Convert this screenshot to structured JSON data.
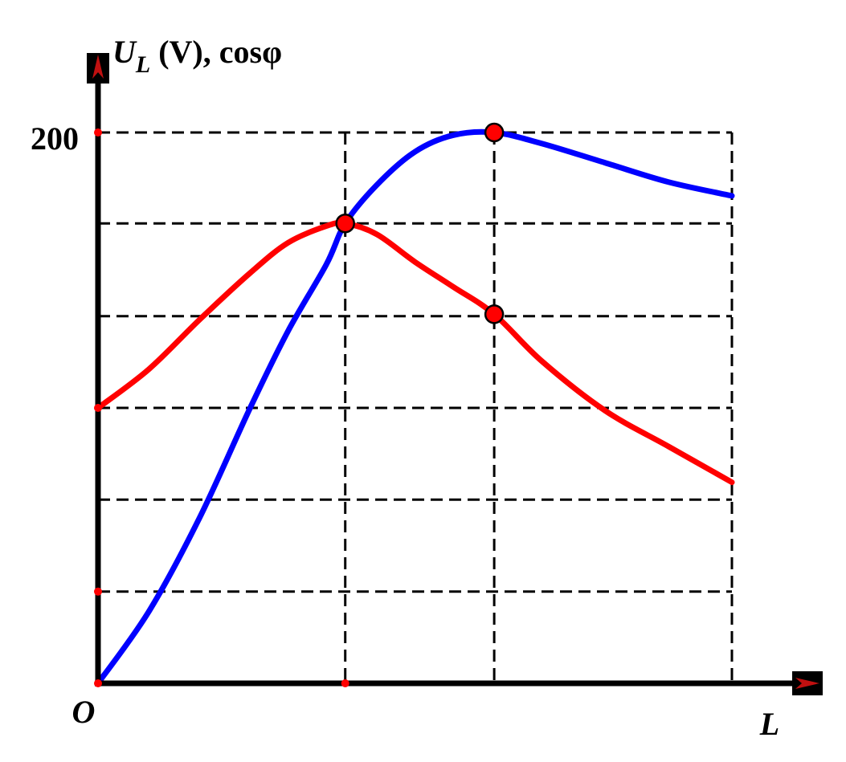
{
  "chart_data": {
    "type": "line",
    "title": "",
    "ylabel": {
      "main": "U",
      "sub": "L",
      "rest": " (V), cosφ"
    },
    "xlabel": "L",
    "origin_label": "O",
    "y_tick_labels": [
      {
        "value": 200,
        "text": "200"
      }
    ],
    "xlim": [
      0,
      1
    ],
    "ylim": [
      0,
      200
    ],
    "y_gridlines": [
      33.3,
      66.7,
      100,
      133.3,
      167,
      200
    ],
    "x_gridlines": [
      0.39,
      0.625,
      1.0
    ],
    "grid": "dashed",
    "legend": "none",
    "colors": {
      "blue_curve": "#0000ff",
      "red_curve": "#ff0000",
      "axis": "#000000",
      "marker_fill": "#ff0000"
    },
    "series": [
      {
        "color": "blue",
        "x": [
          0,
          0.08,
          0.16,
          0.24,
          0.3,
          0.36,
          0.39,
          0.44,
          0.5,
          0.56,
          0.625,
          0.7,
          0.8,
          0.9,
          1.0
        ],
        "values": [
          0,
          26,
          60,
          100,
          128,
          152,
          167,
          181,
          193,
          199,
          200,
          196,
          189,
          182,
          177
        ]
      },
      {
        "color": "red",
        "x": [
          0,
          0.08,
          0.16,
          0.24,
          0.3,
          0.36,
          0.39,
          0.44,
          0.5,
          0.56,
          0.625,
          0.7,
          0.8,
          0.9,
          1.0
        ],
        "values": [
          100,
          114,
          132,
          149,
          160,
          166,
          167,
          163,
          153,
          144,
          134,
          117,
          99,
          86,
          73
        ]
      }
    ],
    "marked_points": [
      {
        "x": 0.39,
        "y": 167
      },
      {
        "x": 0.625,
        "y": 200
      },
      {
        "x": 0.625,
        "y": 134
      }
    ],
    "axis_dots": [
      {
        "axis": "y",
        "value": 200
      },
      {
        "axis": "y",
        "value": 33.3
      },
      {
        "axis": "y",
        "value": 100
      },
      {
        "axis": "x",
        "value": 0.39
      },
      {
        "axis": "x",
        "value": 0
      }
    ]
  }
}
